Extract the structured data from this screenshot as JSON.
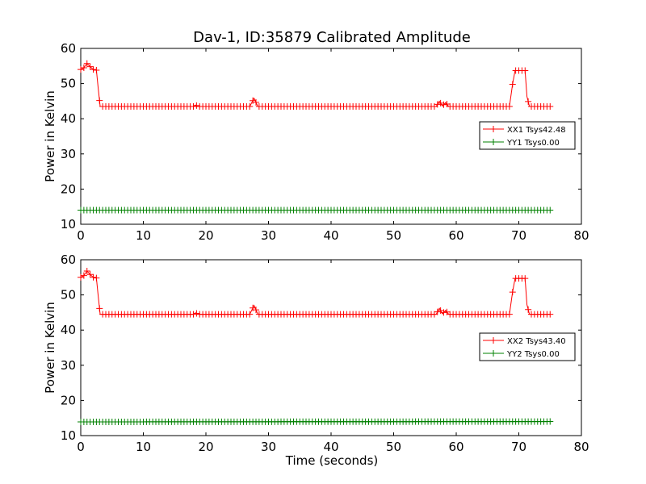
{
  "title": "Dav-1, ID:35879 Calibrated Amplitude",
  "xlabel": "Time (seconds)",
  "chart_data": [
    {
      "type": "line",
      "ylabel": "Power in Kelvin",
      "xlim": [
        0,
        80
      ],
      "ylim": [
        10,
        60
      ],
      "xticks": [
        "0",
        "10",
        "20",
        "30",
        "40",
        "50",
        "60",
        "70",
        "80"
      ],
      "yticks": [
        "10",
        "20",
        "30",
        "40",
        "50",
        "60"
      ],
      "legend_position": "right",
      "series": [
        {
          "name": "XX1 Tsys42.48",
          "color": "#ff0000",
          "marker": "plus",
          "points": [
            [
              0,
              54
            ],
            [
              0.5,
              54.5
            ],
            [
              1,
              55.7
            ],
            [
              1.5,
              54.8
            ],
            [
              2,
              54
            ],
            [
              2.5,
              53.8
            ],
            [
              2.8,
              48.5
            ],
            [
              3.1,
              43.5
            ],
            [
              18,
              43.5
            ],
            [
              18.3,
              43.9
            ],
            [
              18.8,
              43.5
            ],
            [
              27,
              43.5
            ],
            [
              27.7,
              45.8
            ],
            [
              28.3,
              43.5
            ],
            [
              56.8,
              43.5
            ],
            [
              57.3,
              45
            ],
            [
              57.8,
              43.6
            ],
            [
              58.3,
              44.6
            ],
            [
              58.8,
              43.5
            ],
            [
              68.5,
              43.5
            ],
            [
              69,
              49.8
            ],
            [
              69.4,
              53.7
            ],
            [
              71,
              53.7
            ],
            [
              71.3,
              46.3
            ],
            [
              71.7,
              43.5
            ],
            [
              75,
              43.5
            ]
          ]
        },
        {
          "name": "YY1 Tsys0.00",
          "color": "#008000",
          "marker": "plus",
          "points": [
            [
              0,
              14
            ],
            [
              75,
              14
            ]
          ]
        }
      ]
    },
    {
      "type": "line",
      "ylabel": "Power in Kelvin",
      "xlim": [
        0,
        80
      ],
      "ylim": [
        10,
        60
      ],
      "xticks": [
        "0",
        "10",
        "20",
        "30",
        "40",
        "50",
        "60",
        "70",
        "80"
      ],
      "yticks": [
        "10",
        "20",
        "30",
        "40",
        "50",
        "60"
      ],
      "legend_position": "right",
      "series": [
        {
          "name": "XX2 Tsys43.40",
          "color": "#ff0000",
          "marker": "plus",
          "points": [
            [
              0,
              55
            ],
            [
              0.5,
              55.5
            ],
            [
              1,
              56.8
            ],
            [
              1.5,
              55.8
            ],
            [
              2,
              55
            ],
            [
              2.5,
              54.8
            ],
            [
              2.8,
              49.5
            ],
            [
              3.1,
              44.5
            ],
            [
              18,
              44.5
            ],
            [
              18.3,
              44.9
            ],
            [
              18.8,
              44.5
            ],
            [
              27,
              44.5
            ],
            [
              27.7,
              47
            ],
            [
              28.3,
              44.5
            ],
            [
              56.8,
              44.5
            ],
            [
              57.3,
              46.2
            ],
            [
              57.8,
              44.6
            ],
            [
              58.3,
              45.6
            ],
            [
              58.8,
              44.5
            ],
            [
              68.5,
              44.5
            ],
            [
              69,
              50.8
            ],
            [
              69.4,
              54.7
            ],
            [
              71,
              54.7
            ],
            [
              71.3,
              47.2
            ],
            [
              71.7,
              44.5
            ],
            [
              75,
              44.5
            ]
          ]
        },
        {
          "name": "YY2 Tsys0.00",
          "color": "#008000",
          "marker": "plus",
          "points": [
            [
              0,
              13.9
            ],
            [
              75,
              14
            ]
          ]
        }
      ]
    }
  ]
}
